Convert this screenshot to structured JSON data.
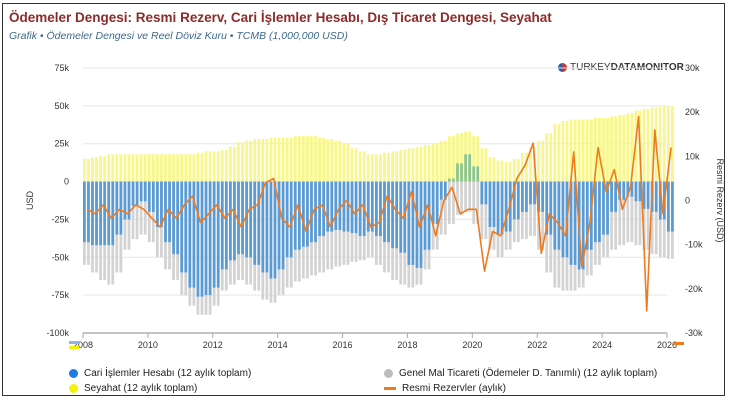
{
  "header": {
    "title": "Ödemeler Dengesi: Resmi Rezerv, Cari İşlemler Hesabı, Dış Ticaret Dengesi, Seyahat",
    "subtitle": "Grafik • Ödemeler Dengesi ve Reel Döviz Kuru • TCMB (1,000,000 USD)"
  },
  "logo": {
    "text_a": "TURKEY",
    "text_b": "DATA",
    "text_c": "MONITOR"
  },
  "chart_data": {
    "type": "bar",
    "title": "Ödemeler Dengesi: Resmi Rezerv, Cari İşlemler Hesabı, Dış Ticaret Dengesi, Seyahat",
    "xlabel": "",
    "ylabel": "USD",
    "ylabel_right": "Resmi Rezerv (USD)",
    "ylim": [
      -100000,
      75000
    ],
    "ylim_right": [
      -30000,
      30000
    ],
    "yticks": [
      "75k",
      "50k",
      "25k",
      "0",
      "-25k",
      "-50k",
      "-75k",
      "-100k"
    ],
    "yticks_right": [
      "30k",
      "20k",
      "10k",
      "0",
      "-10k",
      "-20k",
      "-30k"
    ],
    "xticks": [
      "2008",
      "2010",
      "2012",
      "2014",
      "2016",
      "2018",
      "2020",
      "2022",
      "2024",
      "2026"
    ],
    "xlim": [
      2008,
      2026
    ],
    "x_start": "2008-Q1",
    "frequency": "quarterly",
    "grid": true,
    "legend_position": "bottom",
    "colors": {
      "current_account": "#5b9bd5",
      "current_account_positive": "#8cc68c",
      "goods": "#d3d3d3",
      "travel": "#f7f78a",
      "reserves": "#f07a1e"
    },
    "series": [
      {
        "name": "Cari İşlemler Hesabı (12 aylık toplam)",
        "axis": "left",
        "legend_color": "#1e7be0",
        "values": [
          -40000,
          -42000,
          -42000,
          -42000,
          -35000,
          -25000,
          -16000,
          -13000,
          -20000,
          -30000,
          -40000,
          -48000,
          -60000,
          -70000,
          -76000,
          -75000,
          -70000,
          -58000,
          -52000,
          -48000,
          -50000,
          -55000,
          -60000,
          -64000,
          -58000,
          -50000,
          -45000,
          -43000,
          -40000,
          -36000,
          -33000,
          -32000,
          -33000,
          -34000,
          -36000,
          -33000,
          -36000,
          -40000,
          -44000,
          -47000,
          -55000,
          -57000,
          -45000,
          -28000,
          -12000,
          2000,
          12000,
          18000,
          10000,
          -15000,
          -30000,
          -35000,
          -33000,
          -25000,
          -20000,
          -15000,
          -20000,
          -35000,
          -45000,
          -50000,
          -55000,
          -58000,
          -45000,
          -40000,
          -35000,
          -20000,
          -12000,
          -10000,
          -13000,
          -18000,
          -20000,
          -25000,
          -33000
        ]
      },
      {
        "name": "Genel Mal Ticareti (Ödemeler D. Tanımlı) (12 aylık toplam)",
        "axis": "left",
        "legend_color": "#bdbdbd",
        "values": [
          -55000,
          -60000,
          -65000,
          -68000,
          -60000,
          -45000,
          -38000,
          -35000,
          -40000,
          -50000,
          -58000,
          -65000,
          -75000,
          -82000,
          -88000,
          -88000,
          -82000,
          -72000,
          -68000,
          -65000,
          -68000,
          -72000,
          -78000,
          -80000,
          -75000,
          -70000,
          -66000,
          -64000,
          -62000,
          -60000,
          -58000,
          -56000,
          -55000,
          -53000,
          -52000,
          -50000,
          -55000,
          -60000,
          -65000,
          -68000,
          -70000,
          -68000,
          -58000,
          -45000,
          -35000,
          -28000,
          -22000,
          -20000,
          -28000,
          -38000,
          -45000,
          -50000,
          -45000,
          -40000,
          -38000,
          -36000,
          -45000,
          -60000,
          -70000,
          -72000,
          -72000,
          -70000,
          -62000,
          -55000,
          -50000,
          -45000,
          -42000,
          -40000,
          -42000,
          -45000,
          -48000,
          -50000,
          -51000
        ]
      },
      {
        "name": "Seyahat (12 aylık toplam)",
        "axis": "left",
        "legend_color": "#f2f20a",
        "values": [
          15000,
          16000,
          17000,
          18000,
          18000,
          18000,
          18000,
          18000,
          18000,
          18000,
          18000,
          18000,
          18000,
          18000,
          19000,
          20000,
          20000,
          21000,
          23000,
          26000,
          27000,
          28000,
          28000,
          29000,
          29000,
          29000,
          30000,
          30000,
          30000,
          29000,
          28000,
          27000,
          25000,
          22000,
          20000,
          18000,
          18000,
          19000,
          20000,
          21000,
          22000,
          23000,
          24000,
          25000,
          27000,
          30000,
          32000,
          33000,
          30000,
          22000,
          16000,
          14000,
          13000,
          15000,
          19000,
          23000,
          27000,
          32000,
          38000,
          40000,
          41000,
          41000,
          41000,
          42000,
          42000,
          43000,
          44000,
          45000,
          47000,
          48000,
          49000,
          50000,
          50000
        ]
      },
      {
        "name": "Resmi Rezervler (aylık)",
        "axis": "right",
        "type": "line",
        "legend_color": "#f07a1e",
        "values": [
          -2000,
          -3000,
          -1000,
          -4000,
          -2000,
          -3000,
          -1000,
          -2000,
          -4000,
          -6000,
          -2000,
          -4000,
          -1000,
          1000,
          -5000,
          -3000,
          -1000,
          -4000,
          -2000,
          -6000,
          -2000,
          -1000,
          4000,
          5000,
          -4000,
          -6000,
          -1000,
          -7000,
          -2000,
          -1000,
          -6000,
          -2000,
          0,
          -3000,
          -1000,
          -6000,
          -5000,
          1000,
          -2000,
          -4000,
          2000,
          -6000,
          -1000,
          -8000,
          0,
          3000,
          -3000,
          -2000,
          -2000,
          -16000,
          -7000,
          -8000,
          -2000,
          5000,
          8000,
          13000,
          -12000,
          -3000,
          -5000,
          -8000,
          11000,
          -15000,
          -5000,
          12000,
          2000,
          7000,
          -2000,
          3000,
          19000,
          -25000,
          16000,
          -3000,
          12000
        ]
      }
    ]
  }
}
